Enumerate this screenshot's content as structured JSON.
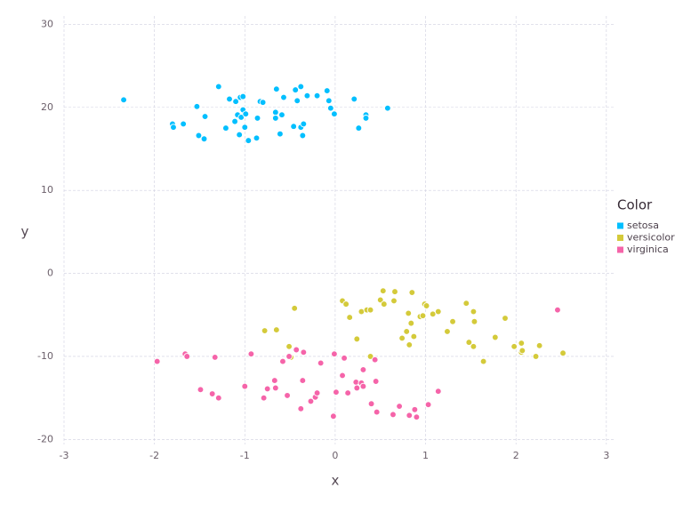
{
  "chart_data": {
    "type": "scatter",
    "x_label": "x",
    "y_label": "y",
    "legend_title": "Color",
    "legend": "right",
    "grid": true,
    "xlim": [
      -3,
      3.1
    ],
    "ylim": [
      -20.6,
      31
    ],
    "xticks": [
      -3,
      -2,
      -1,
      0,
      1,
      2,
      3
    ],
    "yticks": [
      -20,
      -10,
      0,
      10,
      20,
      30
    ],
    "series": [
      {
        "name": "setosa",
        "color": "#00bfff",
        "x": [
          -2.34,
          -1.8,
          -1.79,
          -1.68,
          -1.53,
          -1.44,
          -1.51,
          -1.45,
          -1.29,
          -1.21,
          -1.17,
          -1.1,
          -1.11,
          -1.08,
          -1.05,
          -1.02,
          -1.02,
          -1.04,
          -0.99,
          -1.0,
          -1.06,
          -0.96,
          -0.87,
          -0.86,
          -0.83,
          -0.8,
          -0.65,
          -0.57,
          -0.66,
          -0.66,
          -0.59,
          -0.61,
          -0.46,
          -0.44,
          -0.42,
          -0.38,
          -0.38,
          -0.35,
          -0.36,
          -0.31,
          -0.2,
          -0.09,
          -0.07,
          -0.05,
          -0.01,
          0.21,
          0.26,
          0.34,
          0.34,
          0.58
        ],
        "y": [
          20.9,
          18.0,
          17.6,
          18.0,
          20.1,
          18.9,
          16.6,
          16.2,
          22.5,
          17.5,
          21.0,
          20.7,
          18.3,
          19.1,
          21.2,
          21.3,
          19.7,
          18.8,
          19.2,
          17.6,
          16.7,
          16.0,
          16.3,
          18.7,
          20.7,
          20.6,
          22.2,
          21.2,
          19.4,
          18.7,
          19.1,
          16.8,
          17.7,
          22.1,
          20.8,
          22.5,
          17.6,
          18.0,
          16.6,
          21.4,
          21.4,
          22.0,
          20.8,
          19.9,
          19.2,
          21.0,
          17.5,
          19.1,
          18.7,
          19.9
        ]
      },
      {
        "name": "versicolor",
        "color": "#d4ca3a",
        "x": [
          -0.78,
          -0.65,
          -0.45,
          -0.51,
          -0.49,
          0.08,
          0.12,
          0.16,
          0.24,
          0.29,
          0.35,
          0.39,
          0.39,
          0.5,
          0.53,
          0.54,
          0.65,
          0.66,
          0.74,
          0.79,
          0.81,
          0.82,
          0.84,
          0.85,
          0.87,
          0.94,
          0.97,
          0.99,
          1.01,
          1.08,
          1.14,
          1.24,
          1.3,
          1.45,
          1.48,
          1.53,
          1.54,
          1.53,
          1.64,
          1.77,
          1.88,
          1.98,
          2.06,
          2.06,
          2.07,
          2.22,
          2.26,
          2.52
        ],
        "y": [
          -6.9,
          -6.8,
          -4.2,
          -8.8,
          -10.1,
          -3.3,
          -3.7,
          -5.3,
          -7.9,
          -4.6,
          -4.4,
          -4.4,
          -10.0,
          -3.2,
          -2.1,
          -3.7,
          -3.3,
          -2.2,
          -7.8,
          -7.0,
          -4.8,
          -8.6,
          -6.0,
          -2.3,
          -7.6,
          -5.2,
          -5.1,
          -3.7,
          -3.9,
          -4.9,
          -4.6,
          -7.0,
          -5.8,
          -3.6,
          -8.3,
          -4.6,
          -5.8,
          -8.8,
          -10.6,
          -7.7,
          -5.4,
          -8.8,
          -8.4,
          -9.5,
          -9.3,
          -10.0,
          -8.7,
          -9.6
        ]
      },
      {
        "name": "virginica",
        "color": "#f564a9",
        "x": [
          -1.97,
          -1.66,
          -1.64,
          -1.49,
          -1.36,
          -1.33,
          -1.29,
          -1.0,
          -0.93,
          -0.79,
          -0.75,
          -0.67,
          -0.66,
          -0.58,
          -0.53,
          -0.51,
          -0.43,
          -0.38,
          -0.36,
          -0.35,
          -0.27,
          -0.22,
          -0.2,
          -0.16,
          -0.02,
          -0.01,
          0.01,
          0.08,
          0.1,
          0.14,
          0.23,
          0.24,
          0.29,
          0.31,
          0.31,
          0.4,
          0.44,
          0.45,
          0.46,
          0.64,
          0.71,
          0.82,
          0.88,
          0.9,
          1.03,
          1.14,
          2.46
        ],
        "y": [
          -10.6,
          -9.7,
          -10.0,
          -14.0,
          -14.5,
          -10.1,
          -15.0,
          -13.6,
          -9.7,
          -15.0,
          -13.9,
          -12.9,
          -13.8,
          -10.6,
          -14.7,
          -10.0,
          -9.2,
          -16.3,
          -12.9,
          -9.5,
          -15.4,
          -14.9,
          -14.4,
          -10.8,
          -17.2,
          -9.7,
          -14.3,
          -12.3,
          -10.2,
          -14.4,
          -13.1,
          -13.8,
          -13.2,
          -11.6,
          -13.6,
          -15.7,
          -10.4,
          -13.0,
          -16.7,
          -17.0,
          -16.0,
          -17.1,
          -16.4,
          -17.3,
          -15.8,
          -14.2,
          -4.4
        ]
      }
    ]
  }
}
